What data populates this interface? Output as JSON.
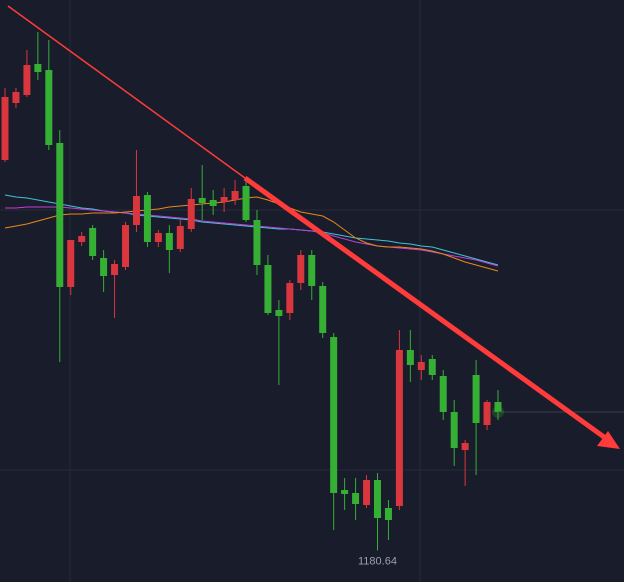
{
  "chart_data": {
    "type": "candlestick",
    "up_color": "#d9363e",
    "down_color": "#35b035",
    "ylim": [
      1149,
      1731
    ],
    "open": [
      1571,
      1628,
      1636,
      1667,
      1661,
      1588,
      1444,
      1489,
      1503,
      1473,
      1456,
      1464,
      1506,
      1536,
      1489,
      1498,
      1482,
      1502,
      1533,
      1531,
      1529,
      1531,
      1545,
      1511,
      1466,
      1421,
      1418,
      1448,
      1476,
      1445,
      1394,
      1241,
      1238,
      1226,
      1251,
      1223,
      1225,
      1381,
      1361,
      1372,
      1355,
      1319,
      1281,
      1356,
      1306,
      1329
    ],
    "high": [
      1643,
      1643,
      1681,
      1699,
      1691,
      1601,
      1491,
      1499,
      1506,
      1481,
      1471,
      1509,
      1581,
      1539,
      1501,
      1506,
      1511,
      1543,
      1566,
      1541,
      1543,
      1551,
      1551,
      1521,
      1476,
      1431,
      1451,
      1481,
      1481,
      1449,
      1398,
      1253,
      1253,
      1256,
      1258,
      1231,
      1401,
      1401,
      1376,
      1376,
      1361,
      1331,
      1291,
      1371,
      1331,
      1341
    ],
    "low": [
      1569,
      1623,
      1634,
      1651,
      1581,
      1369,
      1436,
      1485,
      1471,
      1439,
      1413,
      1461,
      1499,
      1484,
      1484,
      1458,
      1479,
      1499,
      1511,
      1516,
      1519,
      1526,
      1509,
      1456,
      1416,
      1346,
      1411,
      1441,
      1431,
      1393,
      1201,
      1221,
      1211,
      1223,
      1180.64,
      1191,
      1221,
      1349,
      1351,
      1351,
      1311,
      1265,
      1245,
      1256,
      1301,
      1311
    ],
    "close": [
      1634,
      1639,
      1666,
      1659,
      1586,
      1444,
      1491,
      1495,
      1475,
      1455,
      1467,
      1506,
      1535,
      1489,
      1498,
      1481,
      1505,
      1532,
      1528,
      1525,
      1534,
      1540,
      1511,
      1466,
      1418,
      1415,
      1448,
      1476,
      1445,
      1398,
      1238,
      1237,
      1227,
      1251,
      1213,
      1211,
      1381,
      1366,
      1369,
      1356,
      1319,
      1283,
      1288,
      1308,
      1329,
      1319
    ],
    "series": [
      {
        "color": "#3fc4d8",
        "values": [
          1536,
          1534,
          1533,
          1531,
          1529,
          1527,
          1525,
          1523,
          1522,
          1520,
          1519,
          1518,
          1516,
          1515,
          1514,
          1513,
          1512,
          1511,
          1509,
          1508,
          1507,
          1506,
          1505,
          1504,
          1503,
          1502,
          1502,
          1501,
          1500,
          1499,
          1497,
          1495,
          1493,
          1492,
          1491,
          1490,
          1488,
          1487,
          1485,
          1484,
          1481,
          1478,
          1475,
          1472,
          1469,
          1466
        ]
      },
      {
        "color": "#c13fd6",
        "values": [
          1523,
          1523,
          1524,
          1524,
          1524,
          1524,
          1523,
          1522,
          1521,
          1520,
          1519,
          1518,
          1517,
          1516,
          1515,
          1514,
          1513,
          1512,
          1510,
          1509,
          1508,
          1507,
          1506,
          1505,
          1504,
          1503,
          1502,
          1501,
          1500,
          1498,
          1495,
          1492,
          1489,
          1487,
          1485,
          1484,
          1483,
          1482,
          1481,
          1479,
          1477,
          1475,
          1473,
          1471,
          1468,
          1465
        ]
      },
      {
        "color": "#e8891c",
        "values": [
          1503,
          1505,
          1507,
          1510,
          1513,
          1516,
          1517,
          1517,
          1518,
          1518,
          1518,
          1519,
          1520,
          1521,
          1522,
          1524,
          1525,
          1526,
          1527,
          1528,
          1529,
          1531,
          1533,
          1534,
          1531,
          1527,
          1523,
          1519,
          1517,
          1515,
          1509,
          1501,
          1493,
          1488,
          1485,
          1484,
          1484,
          1483,
          1482,
          1480,
          1477,
          1473,
          1469,
          1466,
          1463,
          1460
        ]
      }
    ]
  }
}
